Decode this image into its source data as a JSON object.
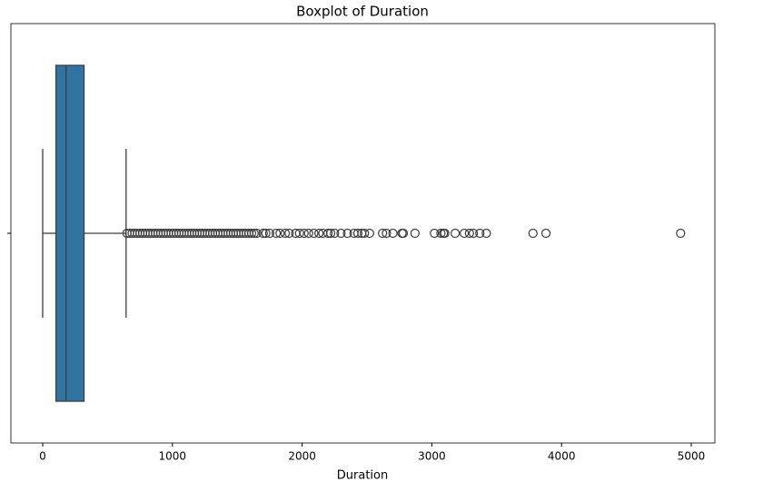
{
  "chart_data": {
    "type": "box",
    "title": "Boxplot of Duration",
    "xlabel": "Duration",
    "color": "#3274a1",
    "line_color": "#3d3d3d",
    "xlim": [
      -245,
      5182
    ],
    "xticks": [
      0,
      1000,
      2000,
      3000,
      4000,
      5000
    ],
    "boxes": [
      {
        "min": 0,
        "q1": 102,
        "median": 180,
        "q3": 319,
        "max": 643,
        "outliers": [
          650,
          670,
          690,
          710,
          730,
          750,
          770,
          790,
          810,
          830,
          850,
          870,
          890,
          910,
          930,
          950,
          970,
          990,
          1010,
          1030,
          1050,
          1070,
          1090,
          1110,
          1130,
          1150,
          1170,
          1190,
          1210,
          1230,
          1250,
          1270,
          1290,
          1310,
          1330,
          1350,
          1370,
          1390,
          1410,
          1430,
          1450,
          1470,
          1490,
          1510,
          1530,
          1550,
          1570,
          1590,
          1610,
          1630,
          1650,
          1700,
          1720,
          1750,
          1800,
          1830,
          1870,
          1900,
          1950,
          1980,
          2015,
          2050,
          2090,
          2130,
          2160,
          2200,
          2220,
          2250,
          2300,
          2350,
          2400,
          2430,
          2460,
          2480,
          2520,
          2620,
          2650,
          2700,
          2770,
          2780,
          2870,
          3020,
          3070,
          3090,
          3100,
          3180,
          3250,
          3290,
          3320,
          3370,
          3420,
          3780,
          3880,
          4918
        ]
      }
    ]
  }
}
